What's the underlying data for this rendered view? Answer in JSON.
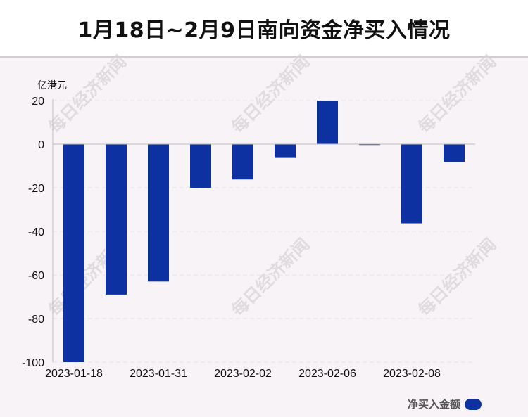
{
  "header": {
    "title": "1月18日~2月9日南向资金净买入情况"
  },
  "watermark": "每日经济新闻",
  "legend": {
    "label": "净买入金额"
  },
  "colors": {
    "bar": "#0d31a0",
    "axis": "#bdbdbd",
    "grid": "#e6e1e5"
  },
  "chart_data": {
    "type": "bar",
    "ylabel": "亿港元",
    "ylim": [
      -100,
      20
    ],
    "yticks": [
      20,
      0,
      -20,
      -40,
      -60,
      -80,
      -100
    ],
    "grid": "dashed horizontal",
    "legend_position": "bottom-right",
    "series": [
      {
        "name": "净买入金额",
        "values": [
          -100,
          -69,
          -63,
          -20,
          -16.2,
          -6,
          20,
          -0.3,
          -36.3,
          -8.2
        ]
      }
    ],
    "categories": [
      "",
      "",
      "",
      "",
      "",
      "",
      "",
      "",
      "",
      ""
    ],
    "xtick_labels": [
      {
        "index": 0,
        "label": "2023-01-18"
      },
      {
        "index": 2,
        "label": "2023-01-31"
      },
      {
        "index": 4,
        "label": "2023-02-02"
      },
      {
        "index": 6,
        "label": "2023-02-06"
      },
      {
        "index": 8,
        "label": "2023-02-08"
      }
    ]
  }
}
